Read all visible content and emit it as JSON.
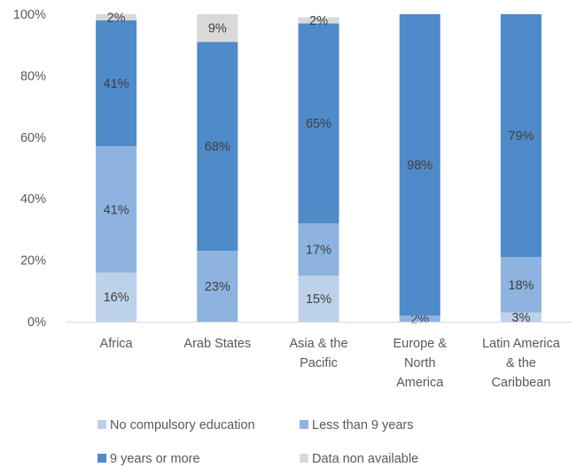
{
  "chart_data": {
    "type": "bar",
    "stacked": true,
    "normalized": true,
    "title": "",
    "xlabel": "",
    "ylabel": "",
    "ylim": [
      0,
      100
    ],
    "y_ticks": [
      "0%",
      "20%",
      "40%",
      "60%",
      "80%",
      "100%"
    ],
    "grid": false,
    "legend_placement": "bottom",
    "categories": [
      [
        "Africa"
      ],
      [
        "Arab States"
      ],
      [
        "Asia & the",
        "Pacific"
      ],
      [
        "Europe &",
        "North",
        "America"
      ],
      [
        "Latin America",
        "& the",
        "Caribbean"
      ]
    ],
    "series": [
      {
        "name": "No compulsory education",
        "color": "#bdd1ea",
        "values": [
          16,
          0,
          15,
          0,
          3
        ],
        "labels": [
          "16%",
          "",
          "15%",
          "",
          "3%"
        ]
      },
      {
        "name": "Less than 9 years",
        "color": "#8db3e0",
        "values": [
          41,
          23,
          17,
          2,
          18
        ],
        "labels": [
          "41%",
          "23%",
          "17%",
          "2%",
          "18%"
        ]
      },
      {
        "name": "9 years or more",
        "color": "#4f8ac9",
        "values": [
          41,
          68,
          65,
          98,
          79
        ],
        "labels": [
          "41%",
          "68%",
          "65%",
          "98%",
          "79%"
        ]
      },
      {
        "name": "Data non available",
        "color": "#d9d9d9",
        "values": [
          2,
          9,
          2,
          0,
          0
        ],
        "labels": [
          "2%",
          "9%",
          "2%",
          "",
          ""
        ]
      }
    ]
  }
}
